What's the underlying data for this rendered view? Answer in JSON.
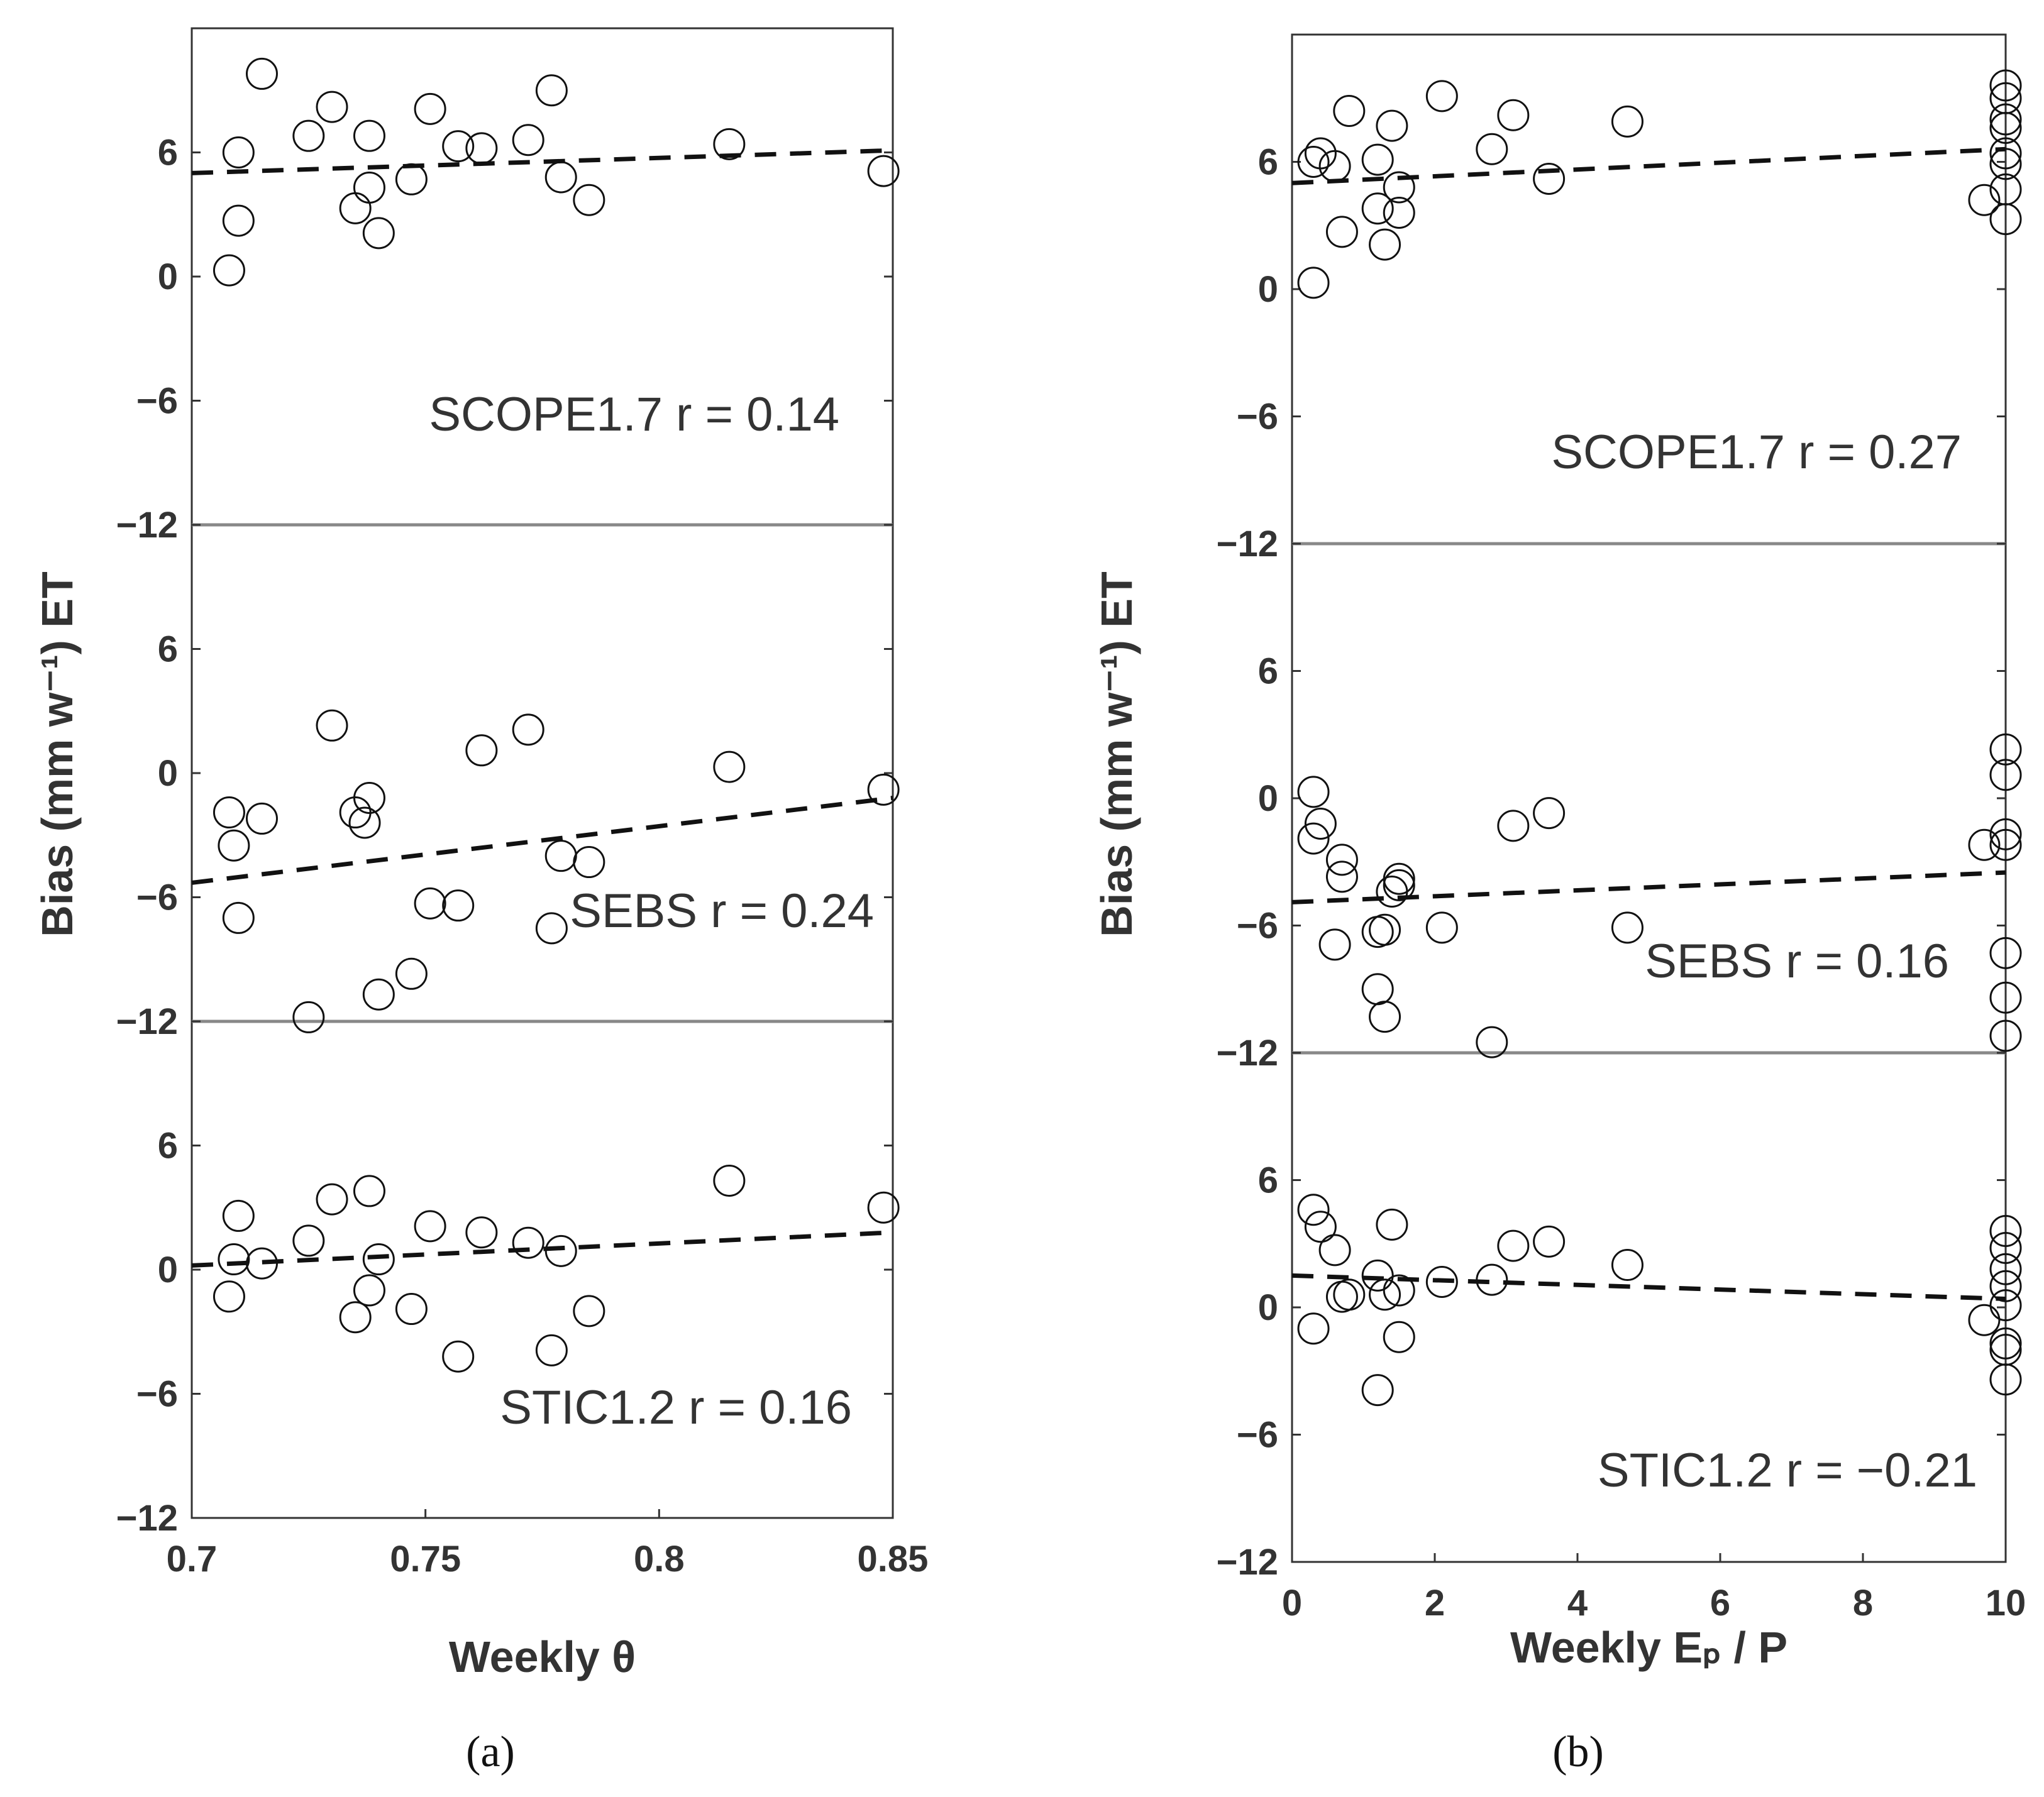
{
  "chart_data": [
    {
      "type": "scatter",
      "caption": "(a)",
      "xlabel": "Weekly θ",
      "ylabel": "Bias (mm w⁻¹) ET",
      "xlim": [
        0.7,
        0.85
      ],
      "xticks": [
        "0.7",
        "0.75",
        "0.8",
        "0.85"
      ],
      "ylim": [
        -12,
        12
      ],
      "yticks": [
        "6",
        "0",
        "−6",
        "−12"
      ],
      "panels": [
        {
          "model": "SCOPE1.7",
          "annotation": "SCOPE1.7  r = 0.14",
          "fit": [
            [
              0.7,
              5.0
            ],
            [
              0.85,
              6.1
            ]
          ],
          "points": [
            [
              0.715,
              9.8
            ],
            [
              0.708,
              0.3
            ],
            [
              0.71,
              2.7
            ],
            [
              0.71,
              6.0
            ],
            [
              0.725,
              6.8
            ],
            [
              0.73,
              8.2
            ],
            [
              0.735,
              3.3
            ],
            [
              0.738,
              4.3
            ],
            [
              0.738,
              6.8
            ],
            [
              0.74,
              2.1
            ],
            [
              0.747,
              4.7
            ],
            [
              0.751,
              8.1
            ],
            [
              0.757,
              6.3
            ],
            [
              0.762,
              6.2
            ],
            [
              0.772,
              6.6
            ],
            [
              0.777,
              9.0
            ],
            [
              0.779,
              4.8
            ],
            [
              0.785,
              3.7
            ],
            [
              0.815,
              6.4
            ],
            [
              0.848,
              5.1
            ]
          ]
        },
        {
          "model": "SEBS",
          "annotation": "SEBS  r = 0.24",
          "fit": [
            [
              0.7,
              -5.3
            ],
            [
              0.85,
              -1.2
            ]
          ],
          "points": [
            [
              0.708,
              -1.9
            ],
            [
              0.709,
              -3.5
            ],
            [
              0.71,
              -7.0
            ],
            [
              0.715,
              -2.2
            ],
            [
              0.725,
              -11.8
            ],
            [
              0.73,
              2.3
            ],
            [
              0.735,
              -1.9
            ],
            [
              0.738,
              -1.2
            ],
            [
              0.737,
              -2.4
            ],
            [
              0.74,
              -10.7
            ],
            [
              0.747,
              -9.7
            ],
            [
              0.751,
              -6.3
            ],
            [
              0.757,
              -6.4
            ],
            [
              0.762,
              1.1
            ],
            [
              0.772,
              2.1
            ],
            [
              0.777,
              -7.5
            ],
            [
              0.779,
              -4.0
            ],
            [
              0.785,
              -4.3
            ],
            [
              0.815,
              0.3
            ],
            [
              0.848,
              -0.8
            ]
          ]
        },
        {
          "model": "STIC1.2",
          "annotation": "STIC1.2  r = 0.16",
          "fit": [
            [
              0.7,
              0.2
            ],
            [
              0.85,
              1.8
            ]
          ],
          "points": [
            [
              0.708,
              -1.3
            ],
            [
              0.709,
              0.5
            ],
            [
              0.71,
              2.6
            ],
            [
              0.715,
              0.3
            ],
            [
              0.725,
              1.4
            ],
            [
              0.73,
              3.4
            ],
            [
              0.735,
              -2.3
            ],
            [
              0.738,
              3.8
            ],
            [
              0.738,
              -1.0
            ],
            [
              0.74,
              0.5
            ],
            [
              0.747,
              -1.9
            ],
            [
              0.751,
              2.1
            ],
            [
              0.757,
              -4.2
            ],
            [
              0.762,
              1.8
            ],
            [
              0.772,
              1.3
            ],
            [
              0.777,
              -3.9
            ],
            [
              0.779,
              0.9
            ],
            [
              0.785,
              -2.0
            ],
            [
              0.815,
              4.3
            ],
            [
              0.848,
              3.0
            ]
          ]
        }
      ]
    },
    {
      "type": "scatter",
      "caption": "(b)",
      "xlabel": "Weekly Eₚ / P",
      "ylabel": "Bias (mm w⁻¹) ET",
      "xlim": [
        0,
        10
      ],
      "xticks": [
        "0",
        "2",
        "4",
        "6",
        "8",
        "10"
      ],
      "ylim": [
        -12,
        12
      ],
      "yticks": [
        "6",
        "0",
        "−6",
        "−12"
      ],
      "panels": [
        {
          "model": "SCOPE1.7",
          "annotation": "SCOPE1.7  r = 0.27",
          "fit": [
            [
              0,
              5.0
            ],
            [
              10,
              6.6
            ]
          ],
          "points": [
            [
              0.3,
              6.0
            ],
            [
              0.3,
              0.3
            ],
            [
              0.4,
              6.4
            ],
            [
              0.6,
              5.8
            ],
            [
              0.7,
              2.7
            ],
            [
              0.8,
              8.4
            ],
            [
              1.2,
              6.1
            ],
            [
              1.2,
              3.8
            ],
            [
              1.3,
              2.1
            ],
            [
              1.4,
              7.7
            ],
            [
              1.5,
              3.6
            ],
            [
              1.5,
              4.8
            ],
            [
              2.1,
              9.1
            ],
            [
              2.8,
              6.6
            ],
            [
              3.1,
              8.2
            ],
            [
              3.6,
              5.2
            ],
            [
              4.7,
              7.9
            ],
            [
              9.7,
              4.2
            ],
            [
              10.0,
              9.6
            ],
            [
              10.0,
              9.0
            ],
            [
              10.0,
              8.0
            ],
            [
              10.0,
              7.6
            ],
            [
              10.0,
              6.4
            ],
            [
              10.0,
              5.9
            ],
            [
              10.0,
              4.7
            ],
            [
              10.0,
              3.3
            ]
          ]
        },
        {
          "model": "SEBS",
          "annotation": "SEBS  r = 0.16",
          "fit": [
            [
              0,
              -4.9
            ],
            [
              10,
              -3.5
            ]
          ],
          "points": [
            [
              0.3,
              0.3
            ],
            [
              0.3,
              -1.9
            ],
            [
              0.4,
              -1.2
            ],
            [
              0.6,
              -6.9
            ],
            [
              0.7,
              -3.7
            ],
            [
              0.7,
              -2.9
            ],
            [
              1.2,
              -6.3
            ],
            [
              1.2,
              -9.0
            ],
            [
              1.3,
              -10.3
            ],
            [
              1.3,
              -6.2
            ],
            [
              1.4,
              -4.4
            ],
            [
              1.5,
              -3.8
            ],
            [
              1.5,
              -4.1
            ],
            [
              2.1,
              -6.1
            ],
            [
              2.8,
              -11.5
            ],
            [
              3.1,
              -1.3
            ],
            [
              3.6,
              -0.7
            ],
            [
              4.7,
              -6.1
            ],
            [
              9.7,
              -2.2
            ],
            [
              10.0,
              2.3
            ],
            [
              10.0,
              1.1
            ],
            [
              10.0,
              -1.7
            ],
            [
              10.0,
              -2.2
            ],
            [
              10.0,
              -7.3
            ],
            [
              10.0,
              -9.4
            ],
            [
              10.0,
              -11.2
            ]
          ]
        },
        {
          "model": "STIC1.2",
          "annotation": "STIC1.2  r = −0.21",
          "fit": [
            [
              0,
              1.5
            ],
            [
              10,
              0.4
            ]
          ],
          "points": [
            [
              0.3,
              4.6
            ],
            [
              0.3,
              -1.0
            ],
            [
              0.4,
              3.8
            ],
            [
              0.6,
              2.7
            ],
            [
              0.7,
              0.5
            ],
            [
              0.8,
              0.6
            ],
            [
              1.2,
              -3.9
            ],
            [
              1.2,
              1.5
            ],
            [
              1.3,
              0.6
            ],
            [
              1.4,
              3.9
            ],
            [
              1.5,
              0.8
            ],
            [
              1.5,
              -1.4
            ],
            [
              2.1,
              1.2
            ],
            [
              2.8,
              1.3
            ],
            [
              3.1,
              2.9
            ],
            [
              3.6,
              3.1
            ],
            [
              4.7,
              2.0
            ],
            [
              9.7,
              -0.6
            ],
            [
              10.0,
              3.6
            ],
            [
              10.0,
              2.8
            ],
            [
              10.0,
              1.8
            ],
            [
              10.0,
              1.0
            ],
            [
              10.0,
              0.1
            ],
            [
              10.0,
              -1.7
            ],
            [
              10.0,
              -2.0
            ],
            [
              10.0,
              -3.4
            ]
          ]
        }
      ]
    }
  ]
}
